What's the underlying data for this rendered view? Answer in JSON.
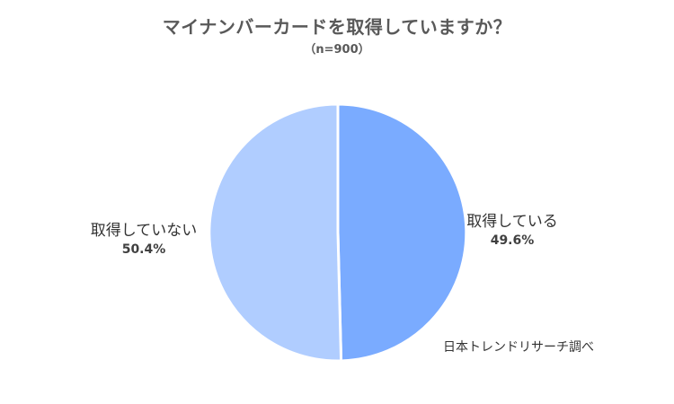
{
  "chart_data": {
    "type": "pie",
    "title": "マイナンバーカードを取得していますか？",
    "subtitle": "（n=900）",
    "slices": [
      {
        "label": "取得している",
        "value": 49.6,
        "value_label": "49.6%",
        "color": "#7aabff"
      },
      {
        "label": "取得していない",
        "value": 50.4,
        "value_label": "50.4%",
        "color": "#b0cdff"
      }
    ],
    "start_angle_deg": 0,
    "direction": "clockwise",
    "separator_color": "#ffffff"
  },
  "source_note": "日本トレンドリサーチ調べ"
}
